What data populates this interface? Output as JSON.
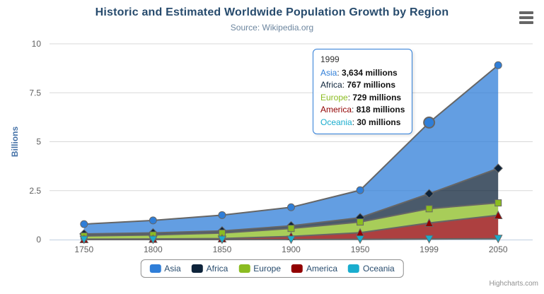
{
  "chart_data": {
    "type": "area",
    "stacking": "normal",
    "title": "Historic and Estimated Worldwide Population Growth by Region",
    "subtitle": "Source: Wikipedia.org",
    "categories": [
      "1750",
      "1800",
      "1850",
      "1900",
      "1950",
      "1999",
      "2050"
    ],
    "xlabel": "",
    "ylabel": "Billions",
    "ylim": [
      0,
      10
    ],
    "yticks": [
      0,
      2.5,
      5,
      7.5,
      10
    ],
    "ytick_labels": [
      "0",
      "2.5",
      "5",
      "7.5",
      "10"
    ],
    "values_unit": "millions",
    "grid": true,
    "legend_position": "bottom-center",
    "stack_order_bottom_to_top": [
      "Oceania",
      "America",
      "Europe",
      "Africa",
      "Asia"
    ],
    "series": [
      {
        "name": "Asia",
        "color": "#2f7ed8",
        "marker": "circle",
        "values": [
          502,
          635,
          809,
          947,
          1402,
          3634,
          5268
        ]
      },
      {
        "name": "Africa",
        "color": "#0d233a",
        "marker": "diamond",
        "values": [
          106,
          107,
          111,
          133,
          221,
          767,
          1766
        ]
      },
      {
        "name": "Europe",
        "color": "#8bbc21",
        "marker": "square",
        "values": [
          163,
          203,
          276,
          408,
          547,
          729,
          628
        ]
      },
      {
        "name": "America",
        "color": "#910000",
        "marker": "triangle-up",
        "values": [
          18,
          31,
          54,
          156,
          339,
          818,
          1201
        ]
      },
      {
        "name": "Oceania",
        "color": "#1aadce",
        "marker": "triangle-down",
        "values": [
          2,
          2,
          2,
          6,
          13,
          30,
          46
        ]
      }
    ],
    "line_color": "#666666",
    "fill_opacity": 0.75,
    "axis_line_color": "#c0d0e0",
    "grid_color": "#d8d8d8",
    "label_color": "#606060",
    "ylabel_color": "#4572a7"
  },
  "tooltip": {
    "visible": true,
    "header": "1999",
    "category": "1999",
    "hover_series": "Asia",
    "border_color": "#2f7ed8",
    "rows": [
      {
        "name": "Asia",
        "color": "#2f7ed8",
        "value": "3,634 millions"
      },
      {
        "name": "Africa",
        "color": "#0d233a",
        "value": "767 millions"
      },
      {
        "name": "Europe",
        "color": "#8bbc21",
        "value": "729 millions"
      },
      {
        "name": "America",
        "color": "#910000",
        "value": "818 millions"
      },
      {
        "name": "Oceania",
        "color": "#1aadce",
        "value": "30 millions"
      }
    ]
  },
  "footer": {
    "credits": "Highcharts.com"
  }
}
